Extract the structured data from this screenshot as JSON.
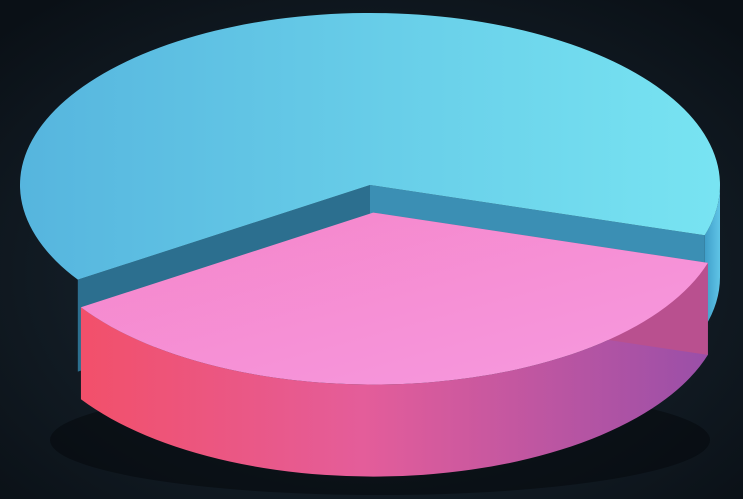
{
  "chart_data": {
    "type": "pie",
    "style": "3d-exploded",
    "title": "",
    "legend": "none",
    "data_labels": "none",
    "slices": [
      {
        "name": "",
        "value": 64,
        "color": "#6ad6ec",
        "side_color": "#4fb3d2",
        "exploded": false
      },
      {
        "name": "",
        "value": 36,
        "color": "#f58fd6",
        "side_color": "#d8588f",
        "exploded": true
      }
    ]
  },
  "background_color": "#0d141b"
}
